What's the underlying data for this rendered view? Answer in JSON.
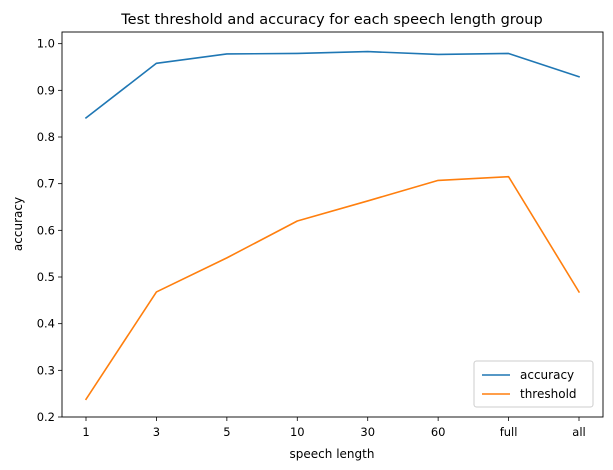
{
  "chart_data": {
    "type": "line",
    "title": "Test threshold and accuracy for each speech length group",
    "xlabel": "speech length",
    "ylabel": "accuracy",
    "categories": [
      "1",
      "3",
      "5",
      "10",
      "30",
      "60",
      "full",
      "all"
    ],
    "ylim": [
      0.2,
      1.025
    ],
    "yticks": [
      0.2,
      0.3,
      0.4,
      0.5,
      0.6,
      0.7,
      0.8,
      0.9,
      1.0
    ],
    "ytick_labels": [
      "0.2",
      "0.3",
      "0.4",
      "0.5",
      "0.6",
      "0.7",
      "0.8",
      "0.9",
      "1.0"
    ],
    "grid": false,
    "legend_position": "bottom-right",
    "series": [
      {
        "name": "accuracy",
        "color": "#1f77b4",
        "values": [
          0.841,
          0.958,
          0.978,
          0.979,
          0.983,
          0.977,
          0.979,
          0.929
        ]
      },
      {
        "name": "threshold",
        "color": "#ff7f0e",
        "values": [
          0.238,
          0.468,
          0.541,
          0.62,
          0.663,
          0.707,
          0.715,
          0.468
        ]
      }
    ]
  }
}
